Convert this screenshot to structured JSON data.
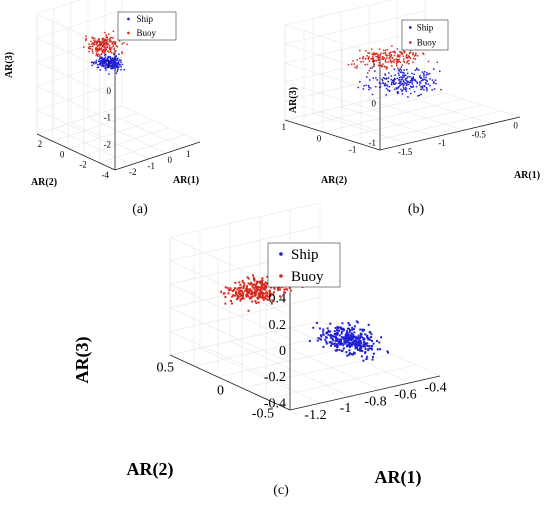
{
  "colors": {
    "ship": "#1f1fd6",
    "buoy": "#d62a1f",
    "frame": "#222222",
    "grid": "#e6e6e6"
  },
  "chart_data": [
    {
      "type": "scatter",
      "panel_label": "(a)",
      "xlabel": "AR(1)",
      "ylabel": "AR(2)",
      "zlabel": "AR(3)",
      "legend": [
        "Ship",
        "Buoy"
      ],
      "legend_position": "top",
      "grid": true,
      "xlim": [
        -2.8,
        1.8
      ],
      "ylim": [
        -4,
        3
      ],
      "zlim": [
        -3,
        1.5
      ],
      "x_ticks": [
        "-2",
        "-1",
        "0",
        "1"
      ],
      "y_ticks": [
        "2",
        "0",
        "-2",
        "-4"
      ],
      "z_ticks": [
        "1",
        "0",
        "-1",
        "-2"
      ],
      "series": [
        {
          "name": "Ship",
          "clusters": [
            {
              "x": [
                -1.6,
                0.2
              ],
              "y": [
                -1.5,
                1.5
              ],
              "z": [
                -0.6,
                0.1
              ],
              "n": 220
            }
          ]
        },
        {
          "name": "Buoy",
          "clusters": [
            {
              "x": [
                -1.8,
                0.4
              ],
              "y": [
                -1.0,
                2.0
              ],
              "z": [
                -0.1,
                0.8
              ],
              "n": 200
            }
          ]
        }
      ]
    },
    {
      "type": "scatter",
      "panel_label": "(b)",
      "xlabel": "AR(1)",
      "ylabel": "AR(2)",
      "zlabel": "AR(3)",
      "legend": [
        "Ship",
        "Buoy"
      ],
      "legend_position": "top",
      "grid": true,
      "xlim": [
        -1.8,
        0.1
      ],
      "ylim": [
        -1.5,
        1.2
      ],
      "zlim": [
        -1.2,
        1.2
      ],
      "x_ticks": [
        "0",
        "-0.5",
        "-1",
        "-1.5"
      ],
      "y_ticks": [
        "1",
        "0",
        "-1"
      ],
      "z_ticks": [
        "1",
        "0",
        "-1"
      ],
      "series": [
        {
          "name": "Ship",
          "clusters": [
            {
              "x": [
                -1.5,
                -0.2
              ],
              "y": [
                -1.2,
                0.8
              ],
              "z": [
                -0.6,
                0.1
              ],
              "n": 230
            }
          ]
        },
        {
          "name": "Buoy",
          "clusters": [
            {
              "x": [
                -1.6,
                -0.2
              ],
              "y": [
                -0.8,
                1.0
              ],
              "z": [
                0.0,
                0.6
              ],
              "n": 210
            }
          ]
        }
      ]
    },
    {
      "type": "scatter",
      "panel_label": "(c)",
      "xlabel": "AR(1)",
      "ylabel": "AR(2)",
      "zlabel": "AR(3)",
      "legend": [
        "Ship",
        "Buoy"
      ],
      "legend_position": "top",
      "grid": true,
      "xlim": [
        -1.35,
        -0.35
      ],
      "ylim": [
        -0.6,
        0.6
      ],
      "zlim": [
        -0.45,
        0.45
      ],
      "x_ticks": [
        "-1.2",
        "-1",
        "-0.8",
        "-0.6",
        "-0.4"
      ],
      "y_ticks": [
        "0.5",
        "0",
        "-0.5"
      ],
      "z_ticks": [
        "0.4",
        "0.2",
        "0",
        "-0.2",
        "-0.4"
      ],
      "series": [
        {
          "name": "Ship",
          "clusters": [
            {
              "x": [
                -0.85,
                -0.4
              ],
              "y": [
                -0.5,
                0.3
              ],
              "z": [
                -0.4,
                -0.15
              ],
              "n": 330
            }
          ]
        },
        {
          "name": "Buoy",
          "clusters": [
            {
              "x": [
                -1.3,
                -0.7
              ],
              "y": [
                0.0,
                0.5
              ],
              "z": [
                -0.05,
                0.2
              ],
              "n": 270
            }
          ]
        }
      ]
    }
  ]
}
